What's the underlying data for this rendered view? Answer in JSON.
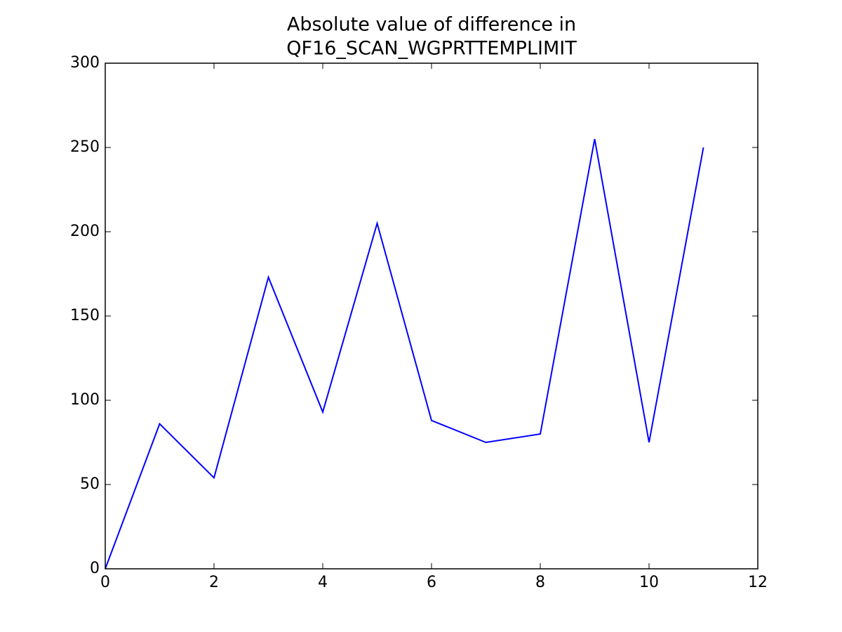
{
  "chart_data": {
    "type": "line",
    "title": [
      "Absolute value of difference in",
      "QF16_SCAN_WGPRTTEMPLIMIT"
    ],
    "x": [
      0,
      1,
      2,
      3,
      4,
      5,
      6,
      7,
      8,
      9,
      10,
      11
    ],
    "series": [
      {
        "color": "#0000ff",
        "values": [
          0,
          86,
          54,
          173,
          93,
          205,
          88,
          75,
          80,
          255,
          75,
          250
        ]
      }
    ],
    "xlim": [
      0,
      12
    ],
    "xticks": [
      0,
      2,
      4,
      6,
      8,
      10,
      12
    ],
    "ylim": [
      0,
      300
    ],
    "yticks": [
      0,
      50,
      100,
      150,
      200,
      250,
      300
    ],
    "grid": false
  }
}
